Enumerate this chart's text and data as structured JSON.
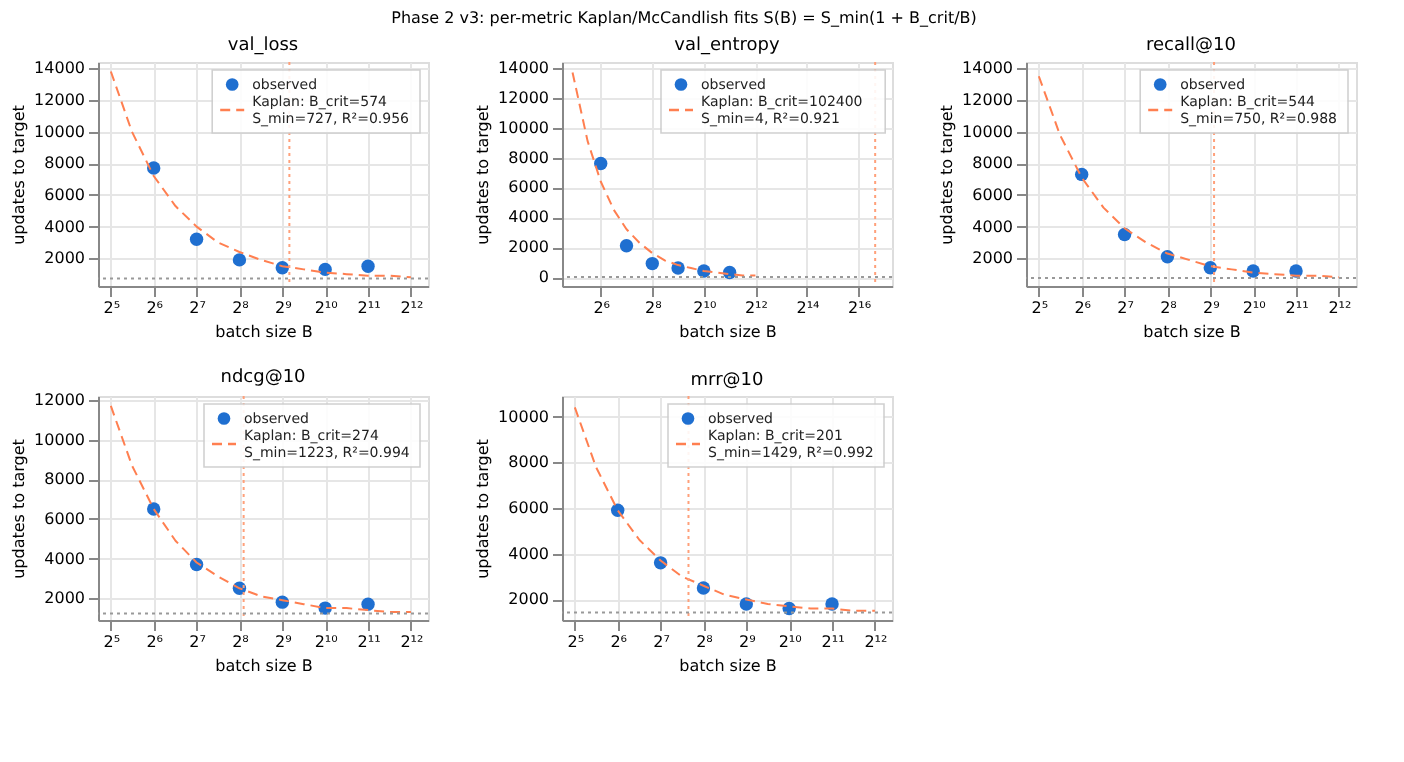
{
  "chart_data": [
    {
      "type": "scatter",
      "title": "val_loss",
      "xlabel": "batch size B",
      "ylabel": "updates to target",
      "annotations": [
        "Phase 2 v3: per-metric Kaplan/McCandlish fits S(B) = S_min(1 + B_crit/B)"
      ],
      "log": "x",
      "grid": true,
      "legend": "top right",
      "xlim": [
        26,
        5400
      ],
      "xticks": [
        {
          "value": 32,
          "label": "2⁵"
        },
        {
          "value": 64,
          "label": "2⁶"
        },
        {
          "value": 128,
          "label": "2⁷"
        },
        {
          "value": 256,
          "label": "2⁸"
        },
        {
          "value": 512,
          "label": "2⁹"
        },
        {
          "value": 1024,
          "label": "2¹⁰"
        },
        {
          "value": 2048,
          "label": "2¹¹"
        },
        {
          "value": 4096,
          "label": "2¹²"
        }
      ],
      "ylim": [
        250,
        14400
      ],
      "yticks": [
        2000,
        4000,
        6000,
        8000,
        10000,
        12000,
        14000
      ],
      "series": [
        {
          "name": "observed",
          "marker": "circle",
          "color": "#1f6fd0",
          "x": [
            64,
            128,
            256,
            512,
            1024,
            2048
          ],
          "values": [
            7700,
            3200,
            1900,
            1400,
            1300,
            1500
          ]
        },
        {
          "name": "Kaplan: B_crit=574\nS_min=727, R²=0.956",
          "type": "line",
          "marker": "none",
          "line_style": "dashed",
          "color": "#ff7f50",
          "x": [
            32,
            45,
            64,
            91,
            128,
            181,
            256,
            362,
            512,
            724,
            1024,
            1448,
            2048,
            2896,
            4096
          ],
          "values": [
            13800,
            10000,
            7200,
            5300,
            4000,
            3000,
            2400,
            1900,
            1500,
            1300,
            1100,
            1000,
            900,
            900,
            800
          ]
        }
      ],
      "ref_lines": [
        {
          "axis": "x",
          "value": 574,
          "color": "#ffa07a",
          "line_style": "dotted"
        },
        {
          "axis": "y",
          "value": 727,
          "color": "#999999",
          "line_style": "dotted"
        }
      ]
    },
    {
      "type": "scatter",
      "title": "val_entropy",
      "xlabel": "batch size B",
      "ylabel": "updates to target",
      "log": "x",
      "grid": true,
      "legend": "top",
      "xlim": [
        22.6,
        161000
      ],
      "xticks": [
        {
          "value": 64,
          "label": "2⁶"
        },
        {
          "value": 256,
          "label": "2⁸"
        },
        {
          "value": 1024,
          "label": "2¹⁰"
        },
        {
          "value": 4096,
          "label": "2¹²"
        },
        {
          "value": 16384,
          "label": "2¹⁴"
        },
        {
          "value": 65536,
          "label": "2¹⁶"
        }
      ],
      "ylim": [
        -600,
        14400
      ],
      "yticks": [
        0,
        2000,
        4000,
        6000,
        8000,
        10000,
        12000,
        14000
      ],
      "series": [
        {
          "name": "observed",
          "marker": "circle",
          "color": "#1f6fd0",
          "x": [
            64,
            128,
            256,
            512,
            1024,
            2048
          ],
          "values": [
            7600,
            2100,
            900,
            600,
            400,
            300
          ]
        },
        {
          "name": "Kaplan: B_crit=102400\nS_min=4, R²=0.921",
          "type": "line",
          "marker": "none",
          "line_style": "dashed",
          "color": "#ff7f50",
          "x": [
            30,
            45,
            64,
            91,
            128,
            181,
            256,
            362,
            512,
            724,
            1024,
            1448,
            2048,
            2896,
            4096
          ],
          "values": [
            13700,
            9100,
            6400,
            4500,
            3200,
            2300,
            1600,
            1100,
            800,
            600,
            400,
            300,
            200,
            100,
            100
          ]
        }
      ],
      "ref_lines": [
        {
          "axis": "x",
          "value": 102400,
          "color": "#ffa07a",
          "line_style": "dotted"
        },
        {
          "axis": "y",
          "value": 4,
          "color": "#999999",
          "line_style": "dotted"
        }
      ]
    },
    {
      "type": "scatter",
      "title": "recall@10",
      "xlabel": "batch size B",
      "ylabel": "updates to target",
      "log": "x",
      "grid": true,
      "legend": "top right",
      "xlim": [
        26,
        5400
      ],
      "xticks": [
        {
          "value": 32,
          "label": "2⁵"
        },
        {
          "value": 64,
          "label": "2⁶"
        },
        {
          "value": 128,
          "label": "2⁷"
        },
        {
          "value": 256,
          "label": "2⁸"
        },
        {
          "value": 512,
          "label": "2⁹"
        },
        {
          "value": 1024,
          "label": "2¹⁰"
        },
        {
          "value": 2048,
          "label": "2¹¹"
        },
        {
          "value": 4096,
          "label": "2¹²"
        }
      ],
      "ylim": [
        250,
        14400
      ],
      "yticks": [
        2000,
        4000,
        6000,
        8000,
        10000,
        12000,
        14000
      ],
      "series": [
        {
          "name": "observed",
          "marker": "circle",
          "color": "#1f6fd0",
          "x": [
            64,
            128,
            256,
            512,
            1024,
            2048
          ],
          "values": [
            7300,
            3500,
            2100,
            1400,
            1200,
            1200
          ]
        },
        {
          "name": "Kaplan: B_crit=544\nS_min=750, R²=0.988",
          "type": "line",
          "marker": "none",
          "line_style": "dashed",
          "color": "#ff7f50",
          "x": [
            32,
            45,
            64,
            91,
            128,
            181,
            256,
            362,
            512,
            724,
            1024,
            1448,
            2048,
            2896,
            4096
          ],
          "values": [
            13500,
            9800,
            7100,
            5200,
            3900,
            3000,
            2300,
            1900,
            1500,
            1300,
            1100,
            1000,
            900,
            900,
            800
          ]
        }
      ],
      "ref_lines": [
        {
          "axis": "x",
          "value": 544,
          "color": "#ffa07a",
          "line_style": "dotted"
        },
        {
          "axis": "y",
          "value": 750,
          "color": "#999999",
          "line_style": "dotted"
        }
      ]
    },
    {
      "type": "scatter",
      "title": "ndcg@10",
      "xlabel": "batch size B",
      "ylabel": "updates to target",
      "log": "x",
      "grid": true,
      "legend": "top right",
      "xlim": [
        26,
        5400
      ],
      "xticks": [
        {
          "value": 32,
          "label": "2⁵"
        },
        {
          "value": 64,
          "label": "2⁶"
        },
        {
          "value": 128,
          "label": "2⁷"
        },
        {
          "value": 256,
          "label": "2⁸"
        },
        {
          "value": 512,
          "label": "2⁹"
        },
        {
          "value": 1024,
          "label": "2¹⁰"
        },
        {
          "value": 2048,
          "label": "2¹¹"
        },
        {
          "value": 4096,
          "label": "2¹²"
        }
      ],
      "ylim": [
        900,
        12200
      ],
      "yticks": [
        2000,
        4000,
        6000,
        8000,
        10000,
        12000
      ],
      "series": [
        {
          "name": "observed",
          "marker": "circle",
          "color": "#1f6fd0",
          "x": [
            64,
            128,
            256,
            512,
            1024,
            2048
          ],
          "values": [
            6500,
            3700,
            2500,
            1800,
            1500,
            1700
          ]
        },
        {
          "name": "Kaplan: B_crit=274\nS_min=1223, R²=0.994",
          "type": "line",
          "marker": "none",
          "line_style": "dashed",
          "color": "#ff7f50",
          "x": [
            32,
            45,
            64,
            91,
            128,
            181,
            256,
            362,
            512,
            724,
            1024,
            1448,
            2048,
            2896,
            4096
          ],
          "values": [
            11700,
            8700,
            6500,
            4900,
            3800,
            3100,
            2500,
            2100,
            1900,
            1700,
            1500,
            1500,
            1400,
            1300,
            1300
          ]
        }
      ],
      "ref_lines": [
        {
          "axis": "x",
          "value": 274,
          "color": "#ffa07a",
          "line_style": "dotted"
        },
        {
          "axis": "y",
          "value": 1223,
          "color": "#999999",
          "line_style": "dotted"
        }
      ]
    },
    {
      "type": "scatter",
      "title": "mrr@10",
      "xlabel": "batch size B",
      "ylabel": "updates to target",
      "log": "x",
      "grid": true,
      "legend": "top right",
      "xlim": [
        26,
        5400
      ],
      "xticks": [
        {
          "value": 32,
          "label": "2⁵"
        },
        {
          "value": 64,
          "label": "2⁶"
        },
        {
          "value": 128,
          "label": "2⁷"
        },
        {
          "value": 256,
          "label": "2⁸"
        },
        {
          "value": 512,
          "label": "2⁹"
        },
        {
          "value": 1024,
          "label": "2¹⁰"
        },
        {
          "value": 2048,
          "label": "2¹¹"
        },
        {
          "value": 4096,
          "label": "2¹²"
        }
      ],
      "ylim": [
        1100,
        10900
      ],
      "yticks": [
        2000,
        4000,
        6000,
        8000,
        10000
      ],
      "series": [
        {
          "name": "observed",
          "marker": "circle",
          "color": "#1f6fd0",
          "x": [
            64,
            128,
            256,
            512,
            1024,
            2048
          ],
          "values": [
            5900,
            3600,
            2500,
            1800,
            1600,
            1800
          ]
        },
        {
          "name": "Kaplan: B_crit=201\nS_min=1429, R²=0.992",
          "type": "line",
          "marker": "none",
          "line_style": "dashed",
          "color": "#ff7f50",
          "x": [
            32,
            45,
            64,
            91,
            128,
            181,
            256,
            362,
            512,
            724,
            1024,
            1448,
            2048,
            2896,
            4096
          ],
          "values": [
            10400,
            7800,
            5900,
            4600,
            3700,
            3000,
            2600,
            2200,
            2000,
            1800,
            1700,
            1600,
            1600,
            1500,
            1500
          ]
        }
      ],
      "ref_lines": [
        {
          "axis": "x",
          "value": 201,
          "color": "#ffa07a",
          "line_style": "dotted"
        },
        {
          "axis": "y",
          "value": 1429,
          "color": "#999999",
          "line_style": "dotted"
        }
      ]
    }
  ]
}
